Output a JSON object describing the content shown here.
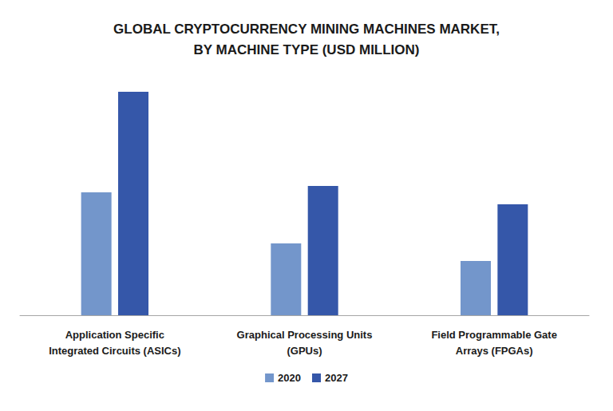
{
  "chart_data": {
    "type": "bar",
    "title": "GLOBAL CRYPTOCURRENCY MINING MACHINES MARKET,\nBY MACHINE TYPE (USD MILLION)",
    "categories": [
      "Application Specific\nIntegrated Circuits (ASICs)",
      "Graphical Processing Units\n(GPUs)",
      "Field Programmable Gate\nArrays (FPGAs)"
    ],
    "series": [
      {
        "name": "2020",
        "color": "#7396cb",
        "values": [
          154,
          90,
          68
        ]
      },
      {
        "name": "2027",
        "color": "#3557a9",
        "values": [
          280,
          162,
          139
        ]
      }
    ],
    "ylim": [
      0,
      280
    ],
    "tick_labels": "x",
    "grid": false,
    "legend": "bottom"
  }
}
